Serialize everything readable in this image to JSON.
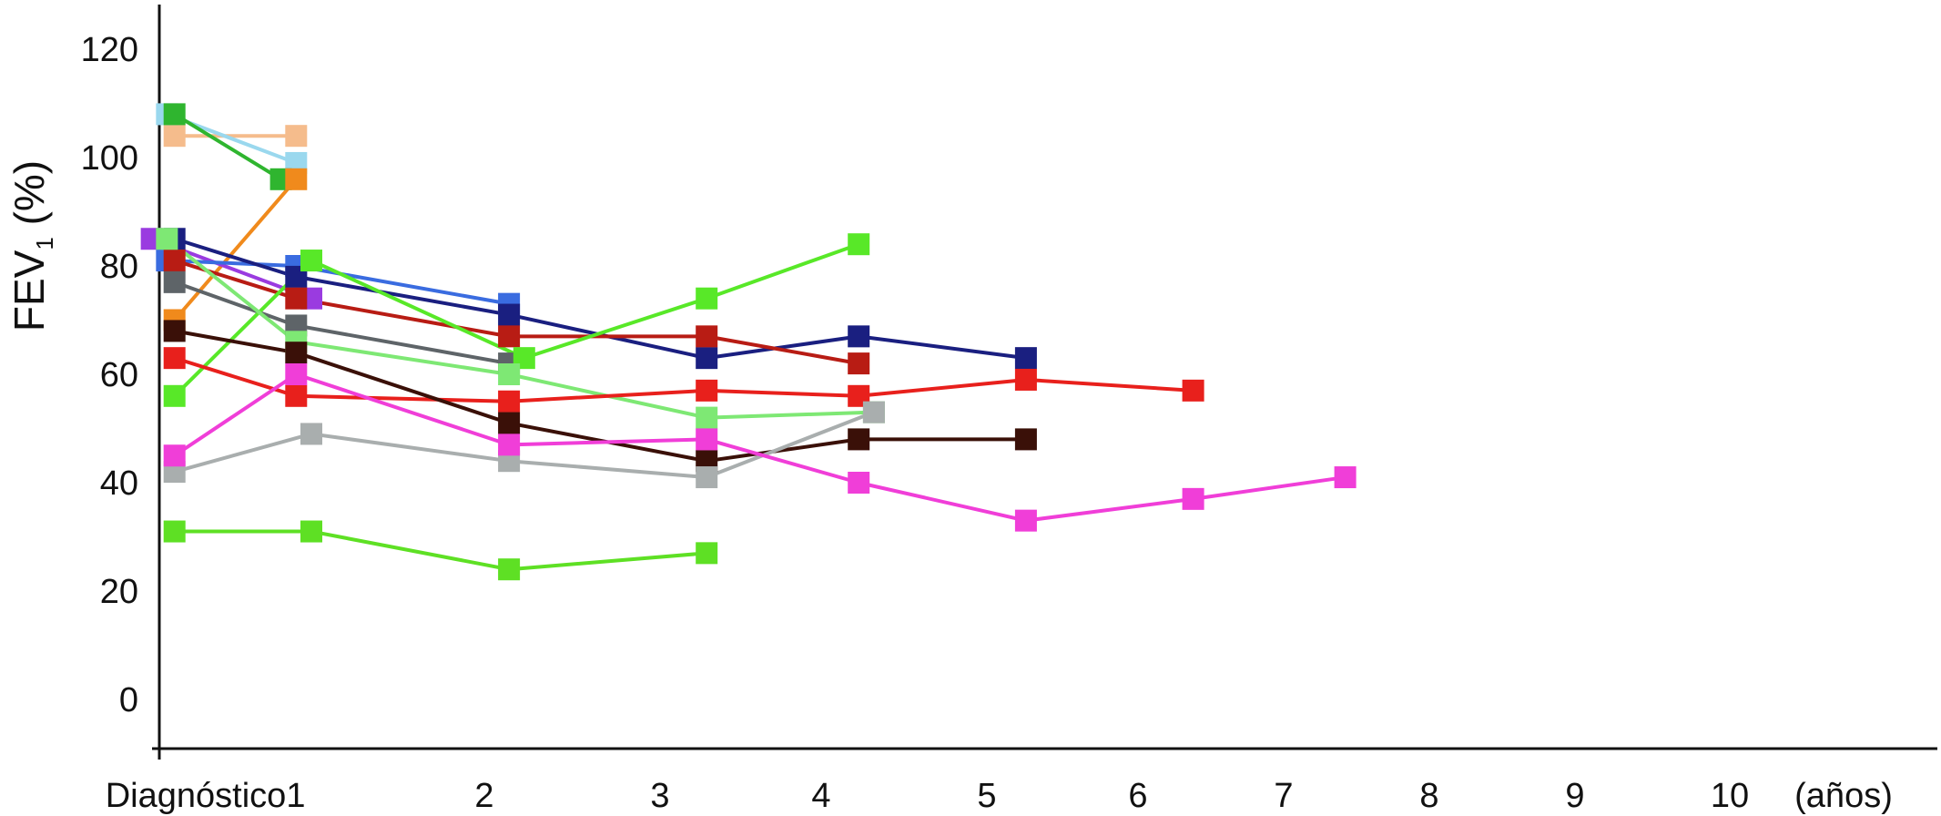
{
  "chart_data": {
    "type": "line",
    "title": "",
    "ylabel_main": "FEV",
    "ylabel_sub": "1",
    "ylabel_rest": " (%)",
    "x_unit_label": "(años)",
    "x_ticks": [
      {
        "label": "Diagnóstico",
        "x": 0
      },
      {
        "label": "1",
        "x": 1
      },
      {
        "label": "2",
        "x": 2
      },
      {
        "label": "3",
        "x": 3
      },
      {
        "label": "4",
        "x": 4
      },
      {
        "label": "5",
        "x": 5
      },
      {
        "label": "6",
        "x": 6
      },
      {
        "label": "7",
        "x": 7
      },
      {
        "label": "8",
        "x": 8
      },
      {
        "label": "9",
        "x": 9
      },
      {
        "label": "10",
        "x": 10
      }
    ],
    "y_ticks": [
      0,
      20,
      40,
      60,
      80,
      100,
      120
    ],
    "ylim": [
      -10,
      130
    ],
    "xlim": [
      0,
      11.5
    ],
    "grid": false,
    "legend": "none",
    "series": [
      {
        "color": "#f5bc8c",
        "points": [
          [
            0.1,
            104
          ],
          [
            0.9,
            104
          ]
        ]
      },
      {
        "color": "#9ad8ee",
        "points": [
          [
            0.05,
            108
          ],
          [
            0.9,
            99
          ]
        ]
      },
      {
        "color": "#2fb52f",
        "points": [
          [
            0.1,
            108
          ],
          [
            0.8,
            96
          ]
        ]
      },
      {
        "color": "#f08a1c",
        "points": [
          [
            0.1,
            70
          ],
          [
            0.9,
            96
          ]
        ]
      },
      {
        "color": "#9a3be0",
        "points": [
          [
            -0.05,
            85
          ],
          [
            1.0,
            74
          ]
        ]
      },
      {
        "color": "#3a6ce0",
        "points": [
          [
            0.05,
            81
          ],
          [
            0.9,
            80
          ],
          [
            2.3,
            73
          ]
        ]
      },
      {
        "color": "#1a1f80",
        "points": [
          [
            0.1,
            85
          ],
          [
            0.9,
            78
          ],
          [
            2.3,
            71
          ],
          [
            3.6,
            63
          ],
          [
            4.6,
            67
          ],
          [
            5.7,
            63
          ]
        ]
      },
      {
        "color": "#b81c14",
        "points": [
          [
            0.1,
            81
          ],
          [
            0.9,
            74
          ],
          [
            2.3,
            67
          ],
          [
            3.6,
            67
          ],
          [
            4.6,
            62
          ]
        ]
      },
      {
        "color": "#5e6468",
        "points": [
          [
            0.1,
            77
          ],
          [
            0.9,
            69
          ],
          [
            2.3,
            62
          ]
        ]
      },
      {
        "color": "#58e828",
        "points": [
          [
            0.1,
            56
          ],
          [
            1.0,
            81
          ],
          [
            2.4,
            63
          ],
          [
            3.6,
            74
          ],
          [
            4.6,
            84
          ]
        ]
      },
      {
        "color": "#7ee874",
        "points": [
          [
            0.05,
            85
          ],
          [
            0.9,
            66
          ],
          [
            2.3,
            60
          ],
          [
            3.6,
            52
          ],
          [
            4.7,
            53
          ]
        ]
      },
      {
        "color": "#e8201c",
        "points": [
          [
            0.1,
            63
          ],
          [
            0.9,
            56
          ],
          [
            2.3,
            55
          ],
          [
            3.6,
            57
          ],
          [
            4.6,
            56
          ],
          [
            5.7,
            59
          ],
          [
            6.8,
            57
          ]
        ]
      },
      {
        "color": "#3a1008",
        "points": [
          [
            0.1,
            68
          ],
          [
            0.9,
            64
          ],
          [
            2.3,
            51
          ],
          [
            3.6,
            44
          ],
          [
            4.6,
            48
          ],
          [
            5.7,
            48
          ]
        ]
      },
      {
        "color": "#a9aeae",
        "points": [
          [
            0.1,
            42
          ],
          [
            1.0,
            49
          ],
          [
            2.3,
            44
          ],
          [
            3.6,
            41
          ],
          [
            4.7,
            53
          ]
        ]
      },
      {
        "color": "#f03ed8",
        "points": [
          [
            0.1,
            45
          ],
          [
            0.9,
            60
          ],
          [
            2.3,
            47
          ],
          [
            3.6,
            48
          ],
          [
            4.6,
            40
          ],
          [
            5.7,
            33
          ],
          [
            6.8,
            37
          ],
          [
            7.8,
            41
          ]
        ]
      },
      {
        "color": "#5ee024",
        "points": [
          [
            0.1,
            31
          ],
          [
            1.0,
            31
          ],
          [
            2.3,
            24
          ],
          [
            3.6,
            27
          ]
        ]
      }
    ]
  }
}
